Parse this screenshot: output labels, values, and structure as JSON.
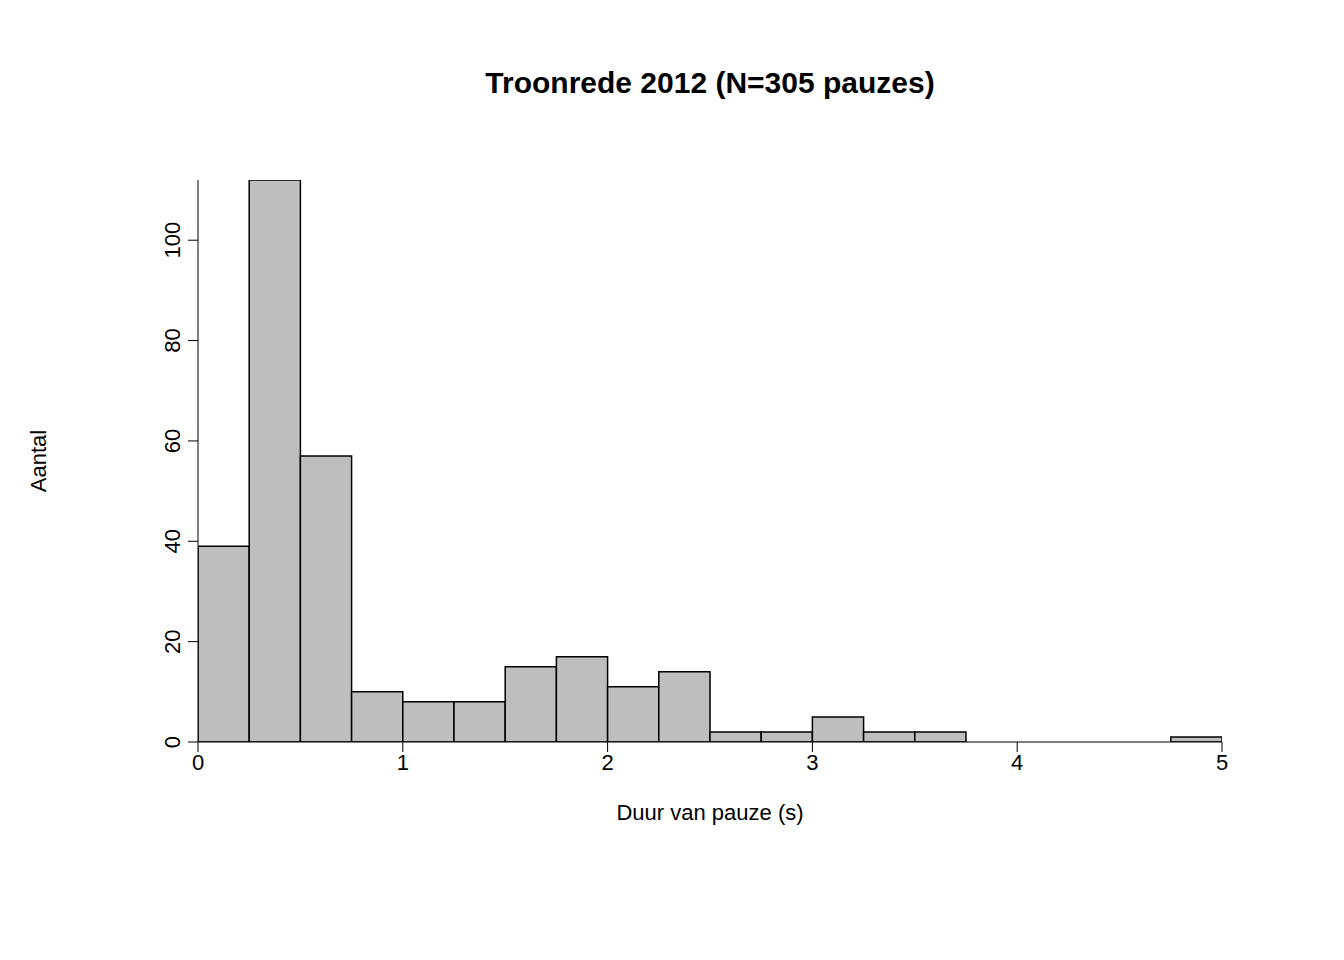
{
  "chart_data": {
    "type": "histogram",
    "title": "Troonrede 2012 (N=305 pauzes)",
    "x_label": "Duur van pauze (s)",
    "y_label": "Aantal",
    "bins": [
      0,
      0.25,
      0.5,
      0.75,
      1,
      1.25,
      1.5,
      1.75,
      2,
      2.25,
      2.5,
      2.75,
      3,
      3.25,
      3.5,
      3.75,
      4,
      4.25,
      4.5,
      4.75,
      5
    ],
    "values": [
      39,
      112,
      57,
      10,
      8,
      8,
      15,
      17,
      11,
      14,
      2,
      2,
      5,
      2,
      2,
      0,
      0,
      0,
      0,
      1
    ],
    "color": "#bebebe",
    "xlim": [
      0,
      5
    ],
    "ylim": [
      0,
      112
    ],
    "xticks": [
      0,
      1,
      2,
      3,
      4,
      5
    ],
    "yticks": [
      0,
      20,
      40,
      60,
      80,
      100
    ],
    "grid": false
  }
}
